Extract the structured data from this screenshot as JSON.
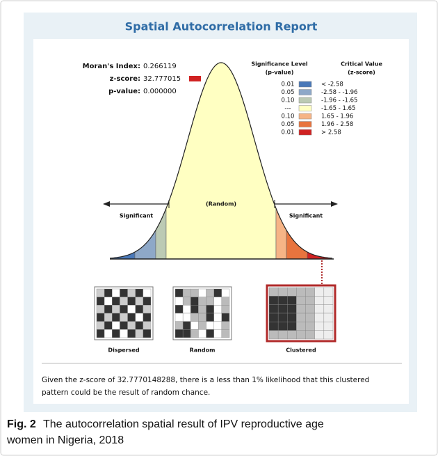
{
  "report": {
    "title": "Spatial Autocorrelation Report",
    "stats": [
      {
        "label": "Moran's Index:",
        "value": "0.266119"
      },
      {
        "label": "z-score:",
        "value": "32.777015"
      },
      {
        "label": "p-value:",
        "value": "0.000000"
      }
    ],
    "legend": {
      "headers": [
        [
          "Significance Level",
          "(p-value)"
        ],
        [
          "Critical Value",
          "(z-score)"
        ]
      ],
      "rows": [
        {
          "p": "0.01",
          "z": "< -2.58",
          "color": "#4a78b8"
        },
        {
          "p": "0.05",
          "z": "-2.58 - -1.96",
          "color": "#8ea8c8"
        },
        {
          "p": "0.10",
          "z": "-1.96 - -1.65",
          "color": "#bccab4"
        },
        {
          "p": "---",
          "z": "-1.65 - 1.65",
          "color": "#ffffc2"
        },
        {
          "p": "0.10",
          "z": "1.65 - 1.96",
          "color": "#f6b486"
        },
        {
          "p": "0.05",
          "z": "1.96 - 2.58",
          "color": "#e8743e"
        },
        {
          "p": "0.01",
          "z": "> 2.58",
          "color": "#d02222"
        }
      ]
    },
    "curve_labels": {
      "left": "Significant",
      "center": "(Random)",
      "right": "Significant"
    },
    "maps": [
      "Dispersed",
      "Random",
      "Clustered"
    ],
    "summary": [
      "Given the z-score of 32.7770148288, there is a less than 1% likelihood that this clustered",
      "pattern could be the result of random chance."
    ]
  },
  "caption": {
    "label": "Fig. 2",
    "text": [
      "The autocorrelation spatial result of IPV reproductive age",
      "women in Nigeria, 2018"
    ]
  }
}
